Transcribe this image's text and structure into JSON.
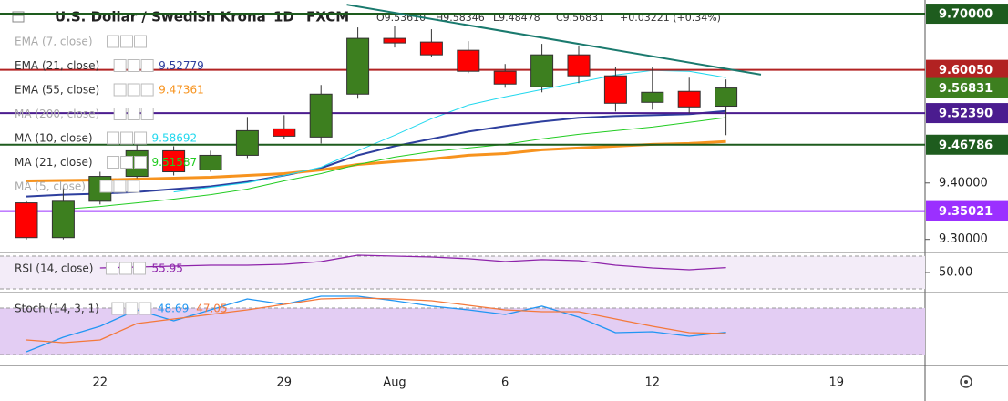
{
  "chart_data": [
    {
      "type": "candlestick",
      "title": "U.S. Dollar / Swedish Krona",
      "interval": "1D",
      "source": "FXCM",
      "header": [
        "O9.53610",
        "H9.58346",
        "L9.48478",
        "C9.56831",
        "+0.03221 (+0.34%)"
      ],
      "categories": [
        null,
        null,
        "22",
        null,
        null,
        null,
        null,
        "29",
        null,
        null,
        "Aug",
        null,
        null,
        "6",
        null,
        null,
        null,
        "12",
        null,
        null,
        null,
        null,
        "19",
        null,
        null
      ],
      "open": [
        9.3648,
        9.3032,
        9.3676,
        9.4117,
        9.4571,
        9.4231,
        9.449,
        9.496,
        9.4814,
        9.5575,
        9.6563,
        9.6498,
        9.6352,
        9.598,
        9.5704,
        9.6271,
        9.5899,
        9.5429,
        9.5624,
        9.5361,
        null,
        null,
        null,
        null,
        null
      ],
      "high": [
        9.3676,
        9.3923,
        9.4198,
        9.4814,
        9.4652,
        9.4571,
        9.517,
        9.5202,
        9.5737,
        9.6757,
        9.6789,
        9.6725,
        9.6514,
        9.6109,
        9.6466,
        9.6433,
        9.6061,
        9.6061,
        9.5866,
        9.58346,
        null,
        null,
        null,
        null,
        null
      ],
      "low": [
        9.3,
        9.3,
        9.362,
        9.4085,
        9.4134,
        9.4198,
        9.4441,
        9.4781,
        9.47,
        9.5494,
        9.6401,
        9.6239,
        9.5947,
        9.5688,
        9.5607,
        9.5769,
        9.5267,
        9.53,
        9.5235,
        9.48478,
        null,
        null,
        null,
        null,
        null
      ],
      "close": [
        9.3032,
        9.3676,
        9.4117,
        9.4571,
        9.4198,
        9.449,
        9.4927,
        9.483,
        9.5575,
        9.6563,
        9.6482,
        9.6271,
        9.598,
        9.5753,
        9.6271,
        9.5899,
        9.5413,
        9.5607,
        9.5348,
        9.56831,
        null,
        null,
        null,
        null,
        null
      ],
      "up_color": "#3d7f1f",
      "down_color": "#ff0000",
      "ylim": [
        9.2785,
        9.7243
      ],
      "yticks": [
        {
          "value": 9.3,
          "label": "9.30000"
        },
        {
          "value": 9.4,
          "label": "9.40000"
        }
      ],
      "hlines": [
        {
          "value": 9.7,
          "label": "9.70000",
          "color": "#1e5c1e"
        },
        {
          "value": 9.6005,
          "label": "9.60050",
          "color": "#b22222"
        },
        {
          "value": 9.5239,
          "label": "9.52390",
          "color": "#4b1c8f"
        },
        {
          "value": 9.46786,
          "label": "9.46786",
          "color": "#1e5c1e"
        },
        {
          "value": 9.35021,
          "label": "9.35021",
          "color": "#9b30ff"
        }
      ],
      "last_price": {
        "value": 9.56831,
        "label": "9.56831",
        "color": "#3d7f1f"
      },
      "trendline": {
        "x": [
          8.7,
          19.95
        ],
        "values": [
          9.716,
          9.592
        ],
        "color": "#1a7a6e"
      },
      "series": [
        {
          "name": "EMA (7, close)",
          "visible": false
        },
        {
          "name": "EMA (21, close)",
          "visible": true,
          "color": "#2e3f9e",
          "width": 2,
          "value_label": "9.52779",
          "values": [
            9.3761,
            9.3793,
            9.381,
            9.3842,
            9.3891,
            9.394,
            9.402,
            9.4134,
            9.4263,
            9.449,
            9.4652,
            9.4781,
            9.4911,
            9.5008,
            9.5089,
            9.5154,
            9.5186,
            9.5202,
            9.5219,
            9.52779,
            null,
            null,
            null,
            null,
            null
          ]
        },
        {
          "name": "EMA (55, close)",
          "visible": true,
          "color": "#f7931e",
          "width": 3,
          "value_label": "9.47361",
          "values": [
            9.4036,
            9.4045,
            9.4053,
            9.4069,
            9.4085,
            9.4101,
            9.4134,
            9.4166,
            9.4231,
            9.4328,
            9.4377,
            9.4425,
            9.449,
            9.4522,
            9.4587,
            9.462,
            9.4652,
            9.4684,
            9.47,
            9.47361,
            null,
            null,
            null,
            null,
            null
          ]
        },
        {
          "name": "MA (200, close)",
          "visible": false
        },
        {
          "name": "MA (10, close)",
          "visible": true,
          "color": "#22d8ee",
          "width": 1,
          "value_label": "9.58692",
          "values": [
            null,
            null,
            null,
            null,
            9.3842,
            9.3923,
            9.4004,
            9.4134,
            9.4279,
            9.4571,
            9.4846,
            9.5138,
            9.5381,
            9.5526,
            9.5656,
            9.5785,
            9.5915,
            9.5996,
            9.598,
            9.58692,
            null,
            null,
            null,
            null,
            null
          ]
        },
        {
          "name": "MA (21, close)",
          "visible": true,
          "color": "#22cc22",
          "width": 1,
          "value_label": "9.51587",
          "values": [
            null,
            9.3535,
            9.3583,
            9.3648,
            9.3713,
            9.3793,
            9.3891,
            9.4036,
            9.4166,
            9.4328,
            9.4458,
            9.4555,
            9.462,
            9.4684,
            9.4781,
            9.4862,
            9.4927,
            9.4992,
            9.5073,
            9.51587,
            null,
            null,
            null,
            null,
            null
          ]
        },
        {
          "name": "MA (5, close)",
          "visible": false
        }
      ]
    },
    {
      "type": "line",
      "ylim": [
        26.7,
        73.3
      ],
      "yticks": [
        {
          "value": 50,
          "label": "50.00"
        }
      ],
      "bands": [
        30,
        70
      ],
      "band_fill": "#f3ecf8",
      "series": [
        {
          "name": "RSI (14, close)",
          "color": "#8e24aa",
          "value_label": "55.95",
          "values": [
            null,
            null,
            55.6,
            56.7,
            57.8,
            58.9,
            58.9,
            60,
            63.3,
            71.1,
            70,
            68.9,
            66.7,
            63.3,
            65.6,
            64.4,
            58.9,
            55.6,
            53.3,
            55.95,
            null,
            null,
            null,
            null,
            null
          ]
        }
      ]
    },
    {
      "type": "line",
      "title": "Stoch (14, 3, 1)",
      "ylim": [
        7.06,
        98.8
      ],
      "bands": [
        20,
        80
      ],
      "band_fill": "#e3cdf3",
      "series": [
        {
          "color": "#2196f3",
          "value_label": "48.69",
          "values": [
            23.5,
            42.4,
            56.5,
            77.6,
            63.5,
            77.6,
            91.8,
            84.7,
            95.3,
            95.3,
            89.4,
            82.4,
            77.6,
            71.8,
            82.4,
            68.2,
            48.2,
            49.4,
            43.5,
            48.69,
            null,
            null,
            null,
            null,
            null
          ]
        },
        {
          "color": "#f4793b",
          "value_label": "47.05",
          "values": [
            38.8,
            35.3,
            38.8,
            60,
            65.9,
            71.8,
            77.6,
            84.7,
            91.8,
            92.9,
            91.8,
            89.4,
            83.5,
            77.6,
            75.3,
            75.3,
            65.9,
            56.5,
            48.2,
            47.05,
            null,
            null,
            null,
            null,
            null
          ]
        }
      ]
    }
  ]
}
